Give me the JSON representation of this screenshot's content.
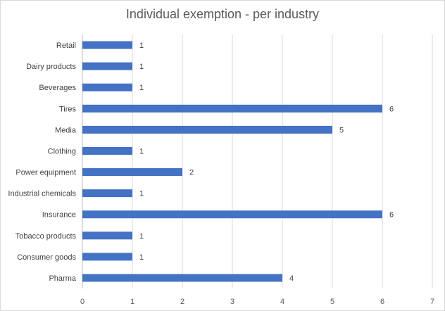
{
  "chart_data": {
    "type": "bar",
    "orientation": "horizontal",
    "title": "Individual exemption - per industry",
    "xlabel": "",
    "ylabel": "",
    "categories": [
      "Retail",
      "Dairy products",
      "Beverages",
      "Tires",
      "Media",
      "Clothing",
      "Power equipment",
      "Industrial chemicals",
      "Insurance",
      "Tobacco products",
      "Consumer goods",
      "Pharma"
    ],
    "values": [
      1,
      1,
      1,
      6,
      5,
      1,
      2,
      1,
      6,
      1,
      1,
      4
    ],
    "xlim": [
      0,
      7
    ],
    "xticks": [
      0,
      1,
      2,
      3,
      4,
      5,
      6,
      7
    ],
    "grid": "vertical",
    "legend": "none",
    "data_labels": true,
    "colors": {
      "bar": "#4472c4",
      "grid": "#d9d9d9",
      "text": "#595959"
    }
  }
}
